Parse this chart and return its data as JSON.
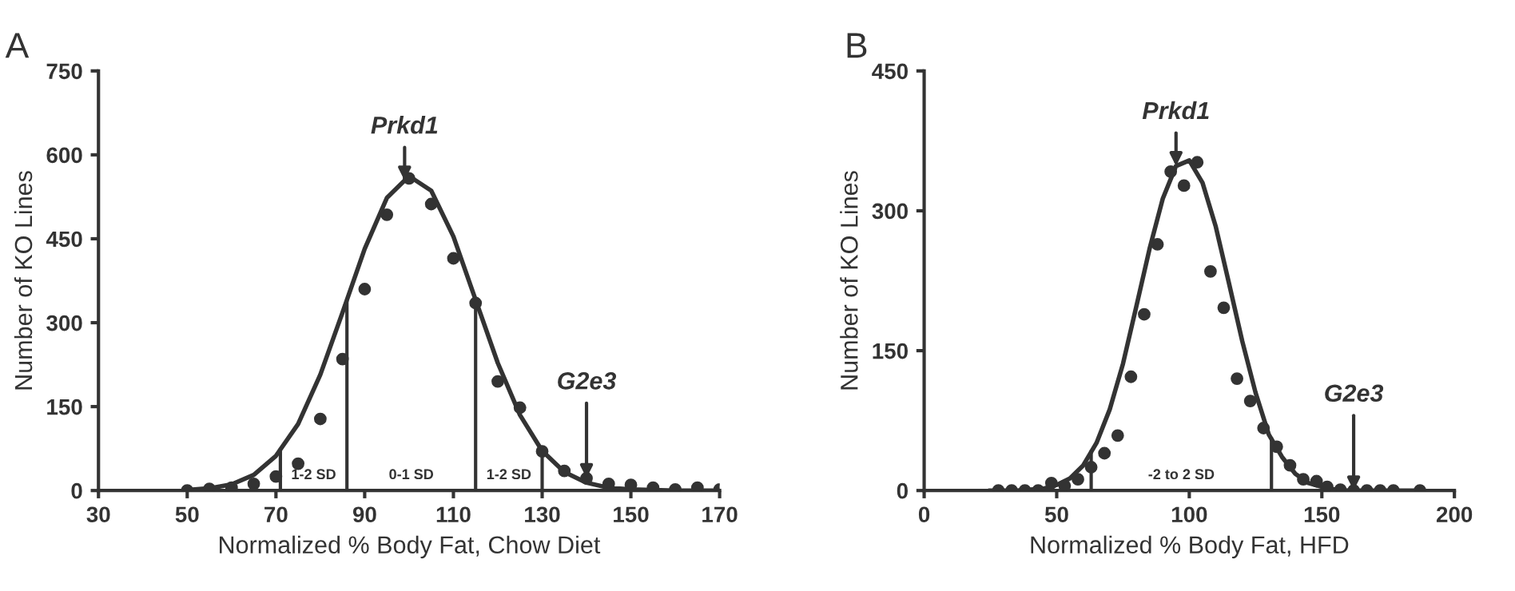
{
  "chart_data": [
    {
      "type": "scatter",
      "title": "A",
      "xlabel": "Normalized % Body Fat, Chow Diet",
      "ylabel": "Number of KO Lines",
      "xlim": [
        30,
        170
      ],
      "xticks": [
        30,
        50,
        70,
        90,
        110,
        130,
        150,
        170
      ],
      "ylim": [
        0,
        750
      ],
      "yticks": [
        0,
        150,
        300,
        450,
        600,
        750
      ],
      "grid": false,
      "series": [
        {
          "marker": "circle",
          "color": "#333333",
          "x": [
            50,
            55,
            60,
            65,
            70,
            75,
            80,
            85,
            90,
            95,
            100,
            105,
            110,
            115,
            120,
            125,
            130,
            135,
            140,
            145,
            150,
            155,
            160,
            165,
            170
          ],
          "values": [
            0,
            3,
            5,
            12,
            25,
            48,
            128,
            235,
            360,
            493,
            558,
            512,
            415,
            335,
            195,
            148,
            70,
            35,
            22,
            12,
            10,
            5,
            2,
            5,
            2
          ]
        },
        {
          "type": "line",
          "marker": "none",
          "color": "#333333",
          "x": [
            50,
            55,
            60,
            65,
            70,
            75,
            80,
            85,
            90,
            95,
            100,
            105,
            110,
            115,
            120,
            125,
            130,
            135,
            140,
            145,
            150,
            155,
            160,
            165,
            170
          ],
          "values": [
            1,
            4,
            11,
            28,
            62,
            119,
            207,
            318,
            432,
            523,
            562,
            536,
            454,
            341,
            228,
            135,
            71,
            33,
            14,
            5,
            2,
            1,
            0,
            0,
            0
          ]
        }
      ],
      "ref_lines": [
        {
          "axis": "x",
          "value": 71
        },
        {
          "axis": "x",
          "value": 86
        },
        {
          "axis": "x",
          "value": 115
        },
        {
          "axis": "x",
          "value": 130
        }
      ],
      "annotations": [
        "1-2 SD",
        "0-1 SD",
        "1-2 SD",
        {
          "text": "Prkd1",
          "x": 99,
          "y": 554
        },
        {
          "text": "G2e3",
          "x": 140,
          "y": 22
        }
      ]
    },
    {
      "type": "scatter",
      "title": "B",
      "xlabel": "Normalized % Body Fat, HFD",
      "ylabel": "Number of KO Lines",
      "xlim": [
        0,
        200
      ],
      "xticks": [
        0,
        50,
        100,
        150,
        200
      ],
      "ylim": [
        0,
        450
      ],
      "yticks": [
        0,
        150,
        300,
        450
      ],
      "grid": false,
      "series": [
        {
          "marker": "circle",
          "color": "#333333",
          "x": [
            28,
            33,
            38,
            43,
            48,
            53,
            58,
            63,
            68,
            73,
            78,
            83,
            88,
            93,
            98,
            103,
            108,
            113,
            118,
            123,
            128,
            133,
            138,
            143,
            148,
            152,
            157,
            162,
            167,
            172,
            177,
            187
          ],
          "values": [
            0,
            0,
            0,
            0,
            8,
            5,
            12,
            25,
            40,
            59,
            122,
            189,
            264,
            342,
            327,
            352,
            235,
            196,
            120,
            96,
            67,
            47,
            27,
            12,
            10,
            4,
            1,
            0,
            0,
            0,
            0,
            0
          ]
        },
        {
          "type": "line",
          "marker": "none",
          "color": "#333333",
          "x": [
            25,
            30,
            35,
            40,
            45,
            50,
            55,
            60,
            65,
            70,
            75,
            80,
            85,
            90,
            95,
            100,
            105,
            110,
            115,
            120,
            125,
            130,
            135,
            140,
            145,
            150,
            155,
            160,
            165,
            170,
            175,
            180,
            185
          ],
          "values": [
            0,
            0,
            0,
            1,
            2,
            6,
            13,
            27,
            51,
            87,
            136,
            197,
            259,
            313,
            348,
            354,
            330,
            283,
            222,
            160,
            105,
            60,
            36,
            18,
            8,
            4,
            1,
            0,
            0,
            0,
            0,
            0,
            0
          ]
        }
      ],
      "ref_lines": [
        {
          "axis": "x",
          "value": 63
        },
        {
          "axis": "x",
          "value": 131
        }
      ],
      "annotations": [
        "-2 to 2 SD",
        {
          "text": "Prkd1",
          "x": 95,
          "y": 348
        },
        {
          "text": "G2e3",
          "x": 162,
          "y": 0
        }
      ]
    }
  ]
}
